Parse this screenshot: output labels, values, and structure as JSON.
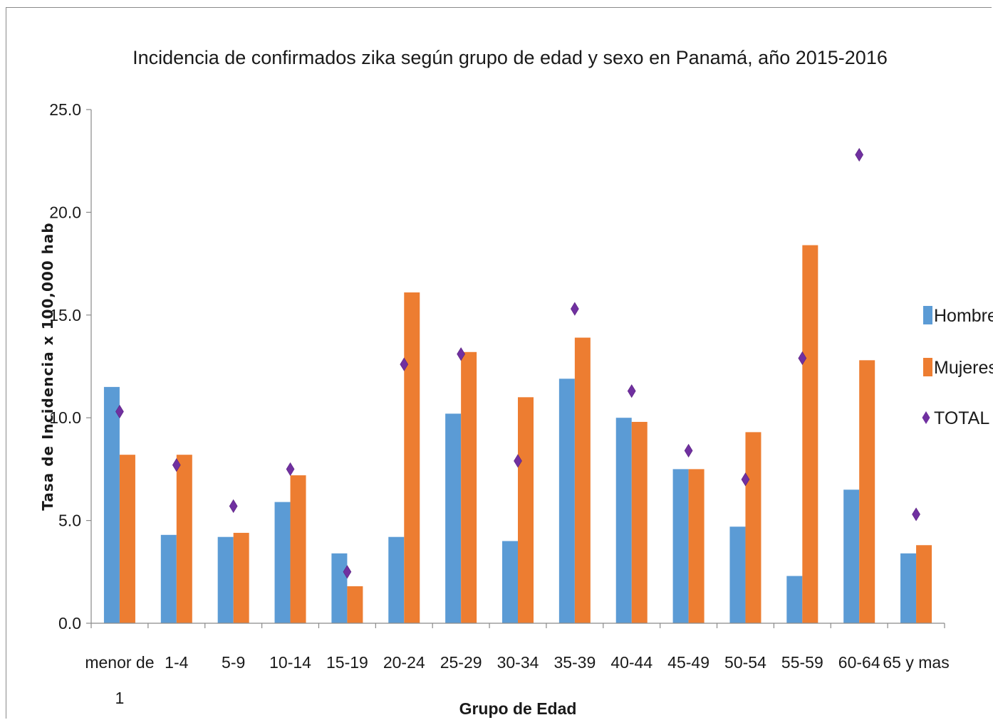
{
  "chart_data": {
    "type": "bar",
    "title": "Incidencia de confirmados zika según grupo de edad y sexo en Panamá, año 2015-2016",
    "xlabel": "Grupo de Edad",
    "ylabel": "Tasa de Incidencia x 100,000 hab",
    "ylim": [
      0,
      25
    ],
    "yticks": [
      "0.0",
      "5.0",
      "10.0",
      "15.0",
      "20.0",
      "25.0"
    ],
    "grid": false,
    "legend_position": "right",
    "categories": [
      [
        "menor de",
        "1"
      ],
      [
        "1-4"
      ],
      [
        "5-9"
      ],
      [
        "10-14"
      ],
      [
        "15-19"
      ],
      [
        "20-24"
      ],
      [
        "25-29"
      ],
      [
        "30-34"
      ],
      [
        "35-39"
      ],
      [
        "40-44"
      ],
      [
        "45-49"
      ],
      [
        "50-54"
      ],
      [
        "55-59"
      ],
      [
        "60-64"
      ],
      [
        "65 y mas"
      ]
    ],
    "series": [
      {
        "name": "Hombres",
        "type": "bar",
        "color": "#5B9BD5",
        "values": [
          11.5,
          4.3,
          4.2,
          5.9,
          3.4,
          4.2,
          10.2,
          4.0,
          11.9,
          10.0,
          7.5,
          4.7,
          2.3,
          6.5,
          3.4
        ]
      },
      {
        "name": "Mujeres",
        "type": "bar",
        "color": "#ED7D31",
        "values": [
          8.2,
          8.2,
          4.4,
          7.2,
          1.8,
          16.1,
          13.2,
          11.0,
          13.9,
          9.8,
          7.5,
          9.3,
          18.4,
          12.8,
          3.8
        ]
      },
      {
        "name": "TOTAL",
        "type": "marker",
        "marker": "diamond",
        "color": "#7030A0",
        "values": [
          10.3,
          7.7,
          5.7,
          7.5,
          2.5,
          12.6,
          13.1,
          7.9,
          15.3,
          11.3,
          8.4,
          7.0,
          12.9,
          22.8,
          5.3
        ]
      }
    ]
  }
}
